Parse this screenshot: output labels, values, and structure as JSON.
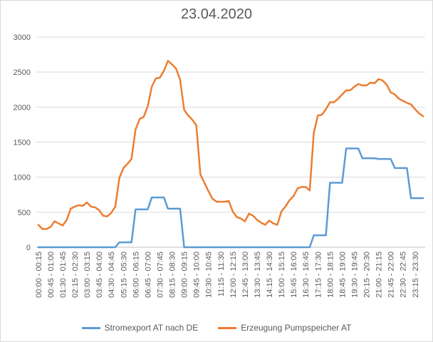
{
  "chart_data": {
    "type": "line",
    "title": "23.04.2020",
    "xlabel": "",
    "ylabel": "",
    "ylim": [
      0,
      3000
    ],
    "yticks": [
      0,
      500,
      1000,
      1500,
      2000,
      2500,
      3000
    ],
    "grid": true,
    "legend_position": "bottom",
    "x": [
      "00:00 - 00:15",
      "00:15 - 00:30",
      "00:30 - 00:45",
      "00:45 - 01:00",
      "01:00 - 01:15",
      "01:15 - 01:30",
      "01:30 - 01:45",
      "01:45 - 02:00",
      "02:00 - 02:15",
      "02:15 - 02:30",
      "02:30 - 02:45",
      "02:45 - 03:00",
      "03:00 - 03:15",
      "03:15 - 03:30",
      "03:30 - 03:45",
      "03:45 - 04:00",
      "04:00 - 04:15",
      "04:15 - 04:30",
      "04:30 - 04:45",
      "04:45 - 05:00",
      "05:00 - 05:15",
      "05:15 - 05:30",
      "05:30 - 05:45",
      "05:45 - 06:00",
      "06:00 - 06:15",
      "06:15 - 06:30",
      "06:30 - 06:45",
      "06:45 - 07:00",
      "07:00 - 07:15",
      "07:15 - 07:30",
      "07:30 - 07:45",
      "07:45 - 08:00",
      "08:00 - 08:15",
      "08:15 - 08:30",
      "08:30 - 08:45",
      "08:45 - 09:00",
      "09:00 - 09:15",
      "09:15 - 09:30",
      "09:30 - 09:45",
      "09:45 - 10:00",
      "10:00 - 10:15",
      "10:15 - 10:30",
      "10:30 - 10:45",
      "10:45 - 11:00",
      "11:00 - 11:15",
      "11:15 - 11:30",
      "11:30 - 11:45",
      "11:45 - 12:00",
      "12:00 - 12:15",
      "12:15 - 12:30",
      "12:30 - 12:45",
      "12:45 - 13:00",
      "13:00 - 13:15",
      "13:15 - 13:30",
      "13:30 - 13:45",
      "13:45 - 14:00",
      "14:00 - 14:15",
      "14:15 - 14:30",
      "14:30 - 14:45",
      "14:45 - 15:00",
      "15:00 - 15:15",
      "15:15 - 15:30",
      "15:30 - 15:45",
      "15:45 - 16:00",
      "16:00 - 16:15",
      "16:15 - 16:30",
      "16:30 - 16:45",
      "16:45 - 17:00",
      "17:00 - 17:15",
      "17:15 - 17:30",
      "17:30 - 17:45",
      "17:45 - 18:00",
      "18:00 - 18:15",
      "18:15 - 18:30",
      "18:30 - 18:45",
      "18:45 - 19:00",
      "19:00 - 19:15",
      "19:15 - 19:30",
      "19:30 - 19:45",
      "19:45 - 20:00",
      "20:00 - 20:15",
      "20:15 - 20:30",
      "20:30 - 20:45",
      "20:45 - 21:00",
      "21:00 - 21:15",
      "21:15 - 21:30",
      "21:30 - 21:45",
      "21:45 - 22:00",
      "22:00 - 22:15",
      "22:15 - 22:30",
      "22:30 - 22:45",
      "22:45 - 23:00",
      "23:00 - 23:15",
      "23:15 - 23:30",
      "23:30 - 23:45",
      "23:45 - 24:00"
    ],
    "x_tick_labels": [
      "00:00 - 00:15",
      "00:45 - 01:00",
      "01:30 - 01:45",
      "02:15 - 02:30",
      "03:00 - 03:15",
      "03:45 - 04:00",
      "04:30 - 04:45",
      "05:15 - 05:30",
      "06:00 - 06:15",
      "06:45 - 07:00",
      "07:30 - 07:45",
      "08:15 - 08:30",
      "09:00 - 09:15",
      "09:45 - 10:00",
      "10:30 - 10:45",
      "11:15 - 11:30",
      "12:00 - 12:15",
      "12:45 - 13:00",
      "13:30 - 13:45",
      "14:15 - 14:30",
      "15:00 - 15:15",
      "15:45 - 16:00",
      "16:30 - 16:45",
      "17:15 - 17:30",
      "18:00 - 18:15",
      "18:45 - 19:00",
      "19:30 - 19:45",
      "20:15 - 20:30",
      "21:00 - 21:15",
      "21:45 - 22:00",
      "22:30 - 22:45",
      "23:15 - 23:30"
    ],
    "series": [
      {
        "name": "Stromexport AT nach DE",
        "color": "#5b9bd5",
        "values": [
          0,
          0,
          0,
          0,
          0,
          0,
          0,
          0,
          0,
          0,
          0,
          0,
          0,
          0,
          0,
          0,
          0,
          0,
          0,
          0,
          70,
          70,
          70,
          70,
          540,
          540,
          540,
          540,
          710,
          710,
          710,
          710,
          550,
          550,
          550,
          550,
          0,
          0,
          0,
          0,
          0,
          0,
          0,
          0,
          0,
          0,
          0,
          0,
          0,
          0,
          0,
          0,
          0,
          0,
          0,
          0,
          0,
          0,
          0,
          0,
          0,
          0,
          0,
          0,
          0,
          0,
          0,
          0,
          170,
          170,
          170,
          170,
          920,
          920,
          920,
          920,
          1410,
          1410,
          1410,
          1410,
          1270,
          1270,
          1270,
          1270,
          1260,
          1260,
          1260,
          1260,
          1130,
          1130,
          1130,
          1130,
          700,
          700,
          700,
          700
        ]
      },
      {
        "name": "Erzeugung Pumpspeicher AT",
        "color": "#ed7d31",
        "values": [
          320,
          260,
          260,
          290,
          370,
          340,
          310,
          390,
          550,
          580,
          600,
          590,
          640,
          580,
          570,
          530,
          450,
          440,
          490,
          580,
          990,
          1130,
          1190,
          1260,
          1680,
          1830,
          1860,
          2010,
          2290,
          2410,
          2420,
          2520,
          2660,
          2610,
          2550,
          2390,
          1960,
          1880,
          1820,
          1740,
          1040,
          920,
          800,
          690,
          650,
          650,
          650,
          660,
          510,
          430,
          410,
          370,
          480,
          450,
          390,
          350,
          320,
          380,
          340,
          320,
          510,
          580,
          670,
          730,
          840,
          860,
          860,
          810,
          1630,
          1880,
          1890,
          1970,
          2070,
          2070,
          2120,
          2180,
          2240,
          2240,
          2290,
          2330,
          2310,
          2310,
          2350,
          2340,
          2400,
          2380,
          2320,
          2210,
          2180,
          2120,
          2090,
          2060,
          2040,
          1970,
          1910,
          1870
        ]
      }
    ]
  }
}
